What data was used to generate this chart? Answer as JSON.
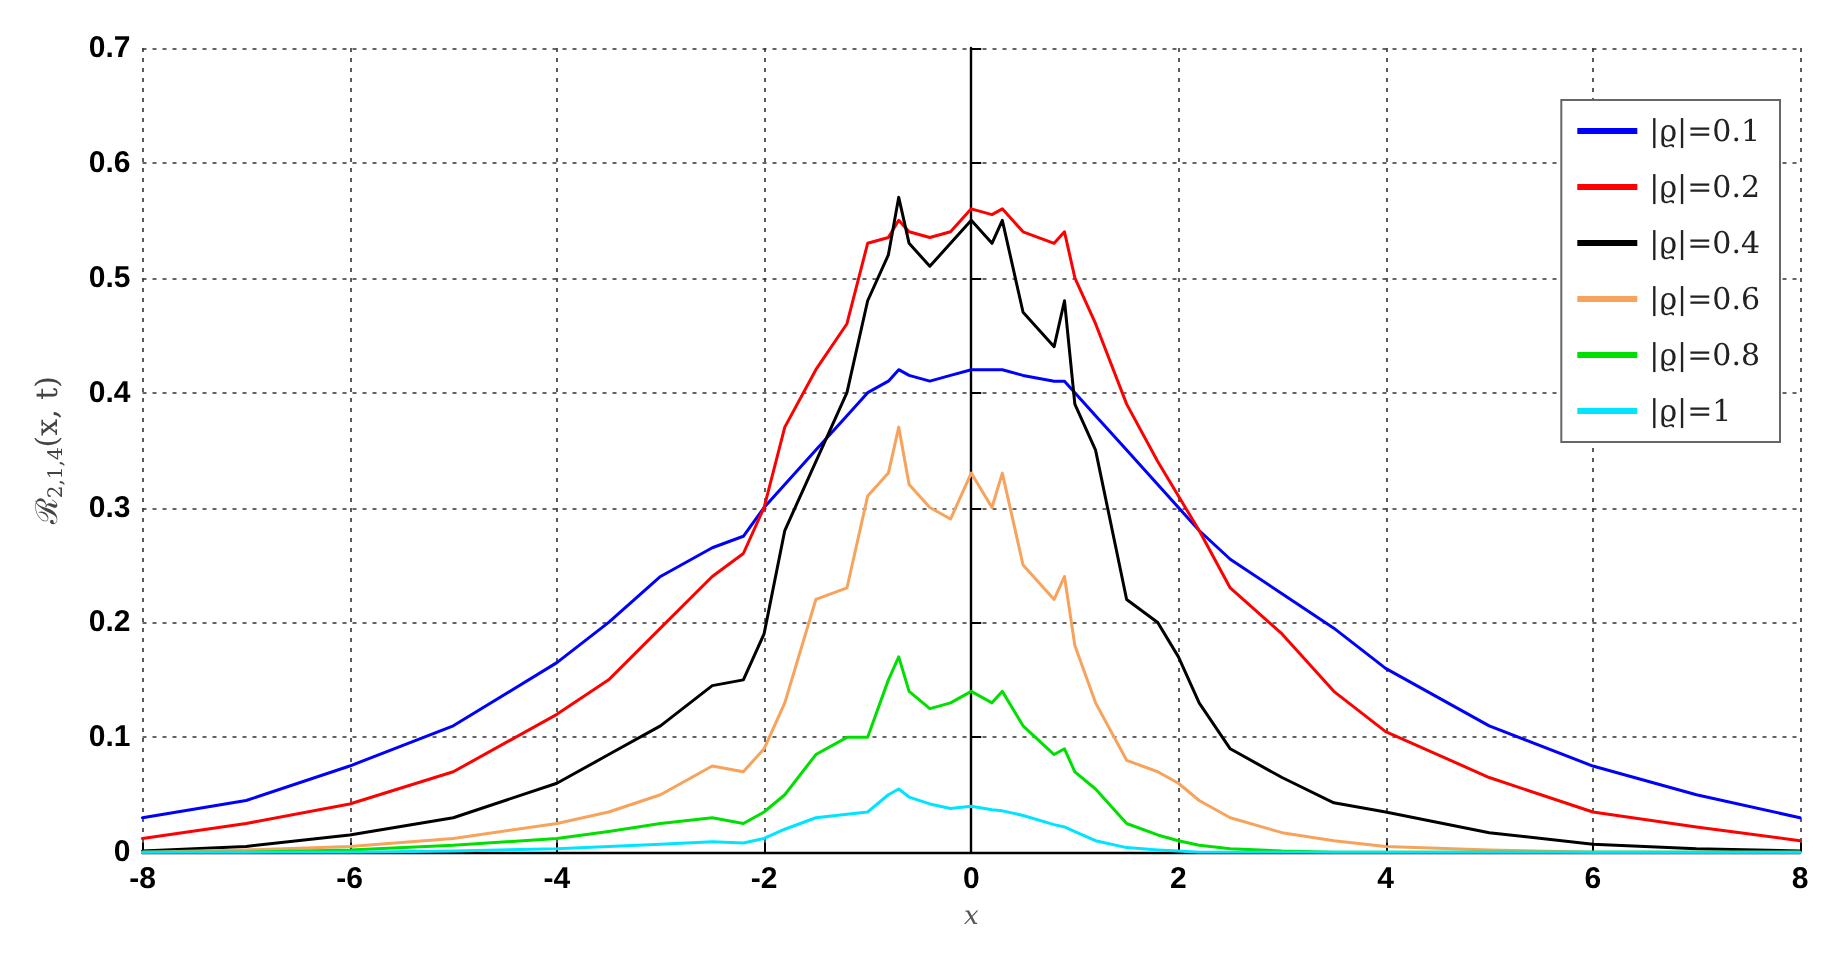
{
  "chart_data": {
    "type": "line",
    "xlabel": "x",
    "ylabel": "ℛ$_{2,1,4}$(x, t)",
    "x": [
      -8,
      -7,
      -6,
      -5,
      -4,
      -3.5,
      -3,
      -2.5,
      -2.2,
      -2,
      -1.8,
      -1.5,
      -1.2,
      -1,
      -0.8,
      -0.7,
      -0.6,
      -0.4,
      -0.2,
      0,
      0.2,
      0.3,
      0.5,
      0.8,
      0.9,
      1,
      1.2,
      1.5,
      1.8,
      2,
      2.2,
      2.5,
      3,
      3.5,
      4,
      5,
      6,
      7,
      8
    ],
    "series": [
      {
        "name": "|ϱ|=0.1",
        "color": "#0000ff",
        "values": [
          0.03,
          0.045,
          0.075,
          0.11,
          0.165,
          0.2,
          0.24,
          0.265,
          0.275,
          0.3,
          0.32,
          0.35,
          0.38,
          0.4,
          0.41,
          0.42,
          0.415,
          0.41,
          0.415,
          0.42,
          0.42,
          0.42,
          0.415,
          0.41,
          0.41,
          0.4,
          0.38,
          0.35,
          0.32,
          0.3,
          0.28,
          0.255,
          0.225,
          0.195,
          0.16,
          0.11,
          0.075,
          0.05,
          0.03
        ]
      },
      {
        "name": "|ϱ|=0.2",
        "color": "#ff0000",
        "values": [
          0.012,
          0.025,
          0.042,
          0.07,
          0.12,
          0.15,
          0.195,
          0.24,
          0.26,
          0.3,
          0.37,
          0.42,
          0.46,
          0.53,
          0.535,
          0.55,
          0.54,
          0.535,
          0.54,
          0.56,
          0.555,
          0.56,
          0.54,
          0.53,
          0.54,
          0.5,
          0.46,
          0.39,
          0.34,
          0.31,
          0.28,
          0.23,
          0.19,
          0.14,
          0.105,
          0.065,
          0.035,
          0.022,
          0.01
        ]
      },
      {
        "name": "|ϱ|=0.4",
        "color": "#000000",
        "values": [
          0.001,
          0.005,
          0.015,
          0.03,
          0.06,
          0.085,
          0.11,
          0.145,
          0.15,
          0.19,
          0.28,
          0.34,
          0.4,
          0.48,
          0.52,
          0.57,
          0.53,
          0.51,
          0.53,
          0.55,
          0.53,
          0.55,
          0.47,
          0.44,
          0.48,
          0.39,
          0.35,
          0.22,
          0.2,
          0.17,
          0.13,
          0.09,
          0.065,
          0.043,
          0.035,
          0.017,
          0.007,
          0.003,
          0.001
        ]
      },
      {
        "name": "|ϱ|=0.6",
        "color": "#f7a35c",
        "values": [
          0,
          0.002,
          0.005,
          0.012,
          0.025,
          0.035,
          0.05,
          0.075,
          0.07,
          0.09,
          0.13,
          0.22,
          0.23,
          0.31,
          0.33,
          0.37,
          0.32,
          0.3,
          0.29,
          0.33,
          0.3,
          0.33,
          0.25,
          0.22,
          0.24,
          0.18,
          0.13,
          0.08,
          0.07,
          0.06,
          0.045,
          0.03,
          0.017,
          0.01,
          0.005,
          0.002,
          0,
          0,
          0
        ]
      },
      {
        "name": "|ϱ|=0.8",
        "color": "#00e000",
        "values": [
          0,
          0,
          0.002,
          0.006,
          0.012,
          0.018,
          0.025,
          0.03,
          0.025,
          0.035,
          0.05,
          0.085,
          0.1,
          0.1,
          0.15,
          0.17,
          0.14,
          0.125,
          0.13,
          0.14,
          0.13,
          0.14,
          0.11,
          0.085,
          0.09,
          0.07,
          0.055,
          0.025,
          0.015,
          0.01,
          0.006,
          0.003,
          0.001,
          0,
          0,
          0,
          0,
          0,
          0
        ]
      },
      {
        "name": "|ϱ|=1",
        "color": "#00e5ff",
        "values": [
          0,
          0,
          0,
          0.001,
          0.003,
          0.005,
          0.007,
          0.009,
          0.008,
          0.012,
          0.02,
          0.03,
          0.033,
          0.035,
          0.05,
          0.055,
          0.048,
          0.042,
          0.038,
          0.04,
          0.037,
          0.036,
          0.032,
          0.024,
          0.022,
          0.018,
          0.01,
          0.004,
          0.002,
          0.001,
          0,
          0,
          0,
          0,
          0,
          0,
          0,
          0,
          0
        ]
      }
    ],
    "xlim": [
      -8,
      8
    ],
    "xticks": [
      -8,
      -6,
      -4,
      -2,
      0,
      2,
      4,
      6,
      8
    ],
    "ylim": [
      0,
      0.7
    ],
    "yticks": [
      0,
      0.1,
      0.2,
      0.3,
      0.4,
      0.5,
      0.6,
      0.7
    ],
    "grid": true,
    "legend": "top right",
    "marker": "none",
    "line_style": "solid"
  }
}
